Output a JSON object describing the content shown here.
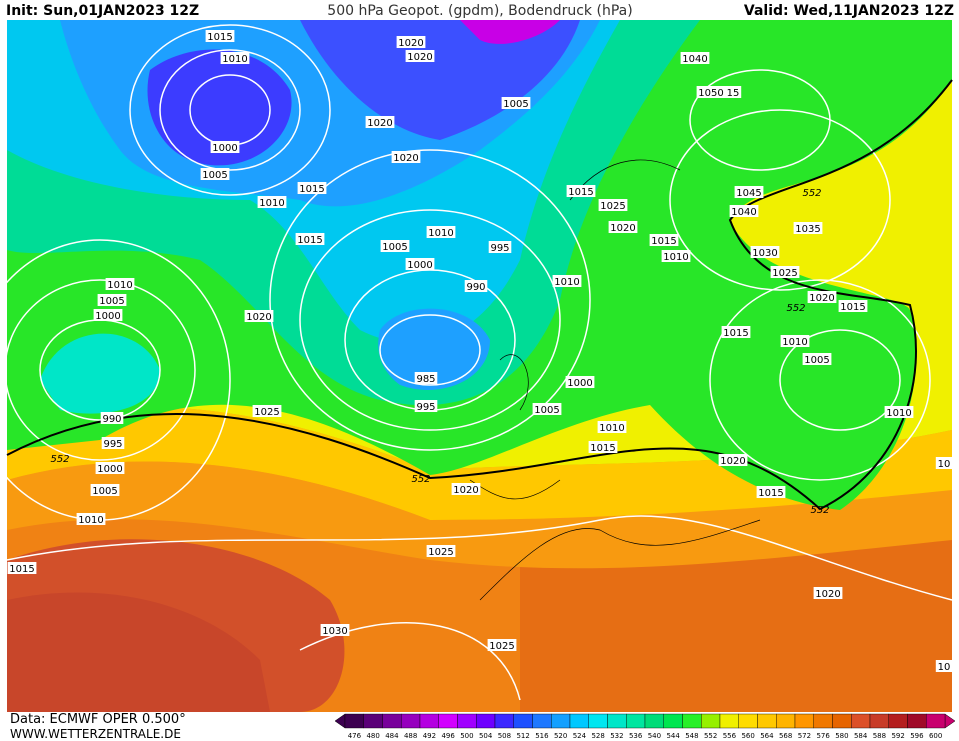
{
  "header": {
    "init": "Init: Sun,01JAN2023 12Z",
    "title": "500 hPa Geopot. (gpdm), Bodendruck (hPa)",
    "valid": "Valid: Wed,11JAN2023 12Z"
  },
  "footer": {
    "source": "Data: ECMWF OPER 0.500°",
    "site": "WWW.WETTERZENTRALE.DE"
  },
  "colorbar": {
    "labels": [
      476,
      480,
      484,
      488,
      492,
      496,
      500,
      504,
      508,
      512,
      516,
      520,
      524,
      528,
      532,
      536,
      540,
      544,
      548,
      552,
      556,
      560,
      564,
      568,
      572,
      576,
      580,
      584,
      588,
      592,
      596,
      600
    ],
    "colors": [
      "#3c0050",
      "#5a0078",
      "#78009b",
      "#9600be",
      "#b400e1",
      "#d200ff",
      "#a000ff",
      "#6e00ff",
      "#3c28ff",
      "#1e50ff",
      "#1e78ff",
      "#14a0ff",
      "#00c8ff",
      "#00e6f0",
      "#00e6c8",
      "#00e6a0",
      "#00dc78",
      "#00e650",
      "#28f028",
      "#96f000",
      "#f0f000",
      "#ffdc00",
      "#ffc800",
      "#ffb400",
      "#ff9600",
      "#f07800",
      "#e66400",
      "#dc5028",
      "#c83c28",
      "#b41e1e",
      "#a00a28",
      "#c8006e"
    ]
  },
  "isobar_labels": [
    "1015",
    "1010",
    "1000",
    "1005",
    "1010",
    "1015",
    "1015",
    "1020",
    "1020",
    "1020",
    "1020",
    "1010",
    "1005",
    "1000",
    "995",
    "990",
    "985",
    "995",
    "1005",
    "1015",
    "1025",
    "1020",
    "1015",
    "1010",
    "1010",
    "1040",
    "1050",
    "15",
    "1045",
    "1040",
    "1035",
    "1030",
    "1025",
    "1020",
    "1015",
    "1015",
    "1010",
    "1005",
    "1010",
    "1000",
    "1005",
    "1010",
    "1015",
    "1020",
    "1015",
    "1020",
    "1025",
    "1030",
    "1025",
    "1020",
    "1025",
    "1020",
    "1010",
    "1005",
    "1000",
    "990",
    "995",
    "1000",
    "1005",
    "1010",
    "1015",
    "10",
    "10"
  ],
  "contour_labels": [
    "552",
    "552",
    "552",
    "552",
    "552"
  ]
}
